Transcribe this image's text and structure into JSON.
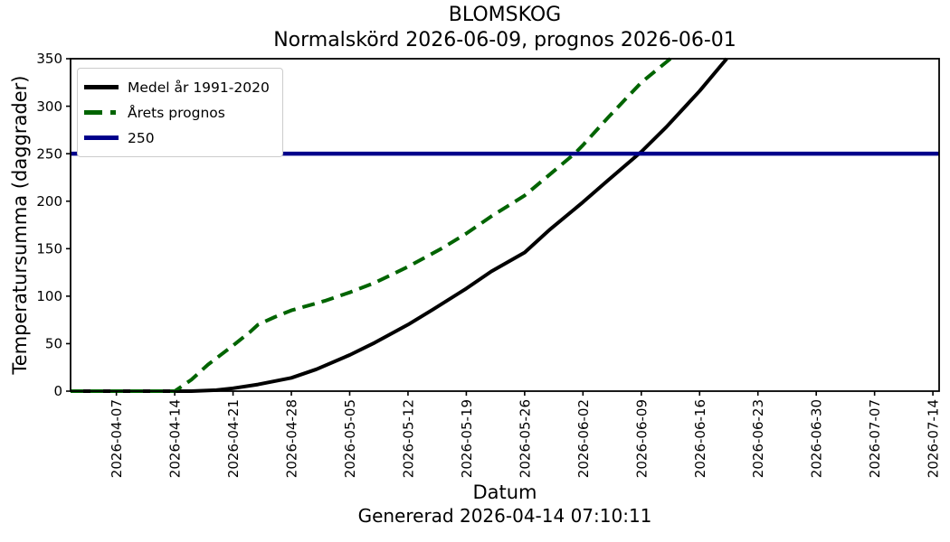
{
  "chart_data": {
    "type": "line",
    "title": "BLOMSKOG",
    "subtitle": "Normalskörd 2026-06-09, prognos 2026-06-01",
    "xlabel": "Datum",
    "ylabel": "Temperatursumma (daggrader)",
    "footer": "Genererad 2026-04-14 07:10:11",
    "grid": false,
    "legend_position": "upper-left",
    "ylim": [
      0,
      350
    ],
    "yticks": [
      0,
      50,
      100,
      150,
      200,
      250,
      300,
      350
    ],
    "x_domain": [
      "2026-04-01T12:00:00Z",
      "2026-07-14T18:00:00Z"
    ],
    "xticks": [
      "2026-04-07",
      "2026-04-14",
      "2026-04-21",
      "2026-04-28",
      "2026-05-05",
      "2026-05-12",
      "2026-05-19",
      "2026-05-26",
      "2026-06-02",
      "2026-06-09",
      "2026-06-16",
      "2026-06-23",
      "2026-06-30",
      "2026-07-07",
      "2026-07-14"
    ],
    "threshold_value": 250,
    "series": [
      {
        "name": "medel",
        "label": "Medel år 1991-2020",
        "color": "#000000",
        "style": "solid",
        "width": 4,
        "points": [
          [
            "2026-04-01T12:00:00Z",
            0
          ],
          [
            "2026-04-16",
            0
          ],
          [
            "2026-04-19",
            1
          ],
          [
            "2026-04-21",
            3
          ],
          [
            "2026-04-24",
            7
          ],
          [
            "2026-04-28",
            14
          ],
          [
            "2026-05-01",
            23
          ],
          [
            "2026-05-05",
            38
          ],
          [
            "2026-05-08",
            51
          ],
          [
            "2026-05-12",
            70
          ],
          [
            "2026-05-15",
            86
          ],
          [
            "2026-05-19",
            108
          ],
          [
            "2026-05-22",
            126
          ],
          [
            "2026-05-26",
            146
          ],
          [
            "2026-05-29",
            170
          ],
          [
            "2026-06-02",
            199
          ],
          [
            "2026-06-05",
            222
          ],
          [
            "2026-06-09",
            252
          ],
          [
            "2026-06-12",
            278
          ],
          [
            "2026-06-16",
            316
          ],
          [
            "2026-06-19T06:00:00Z",
            350
          ]
        ]
      },
      {
        "name": "prognos",
        "label": "Årets prognos",
        "color": "#006400",
        "style": "dashed",
        "width": 4,
        "points": [
          [
            "2026-04-01T12:00:00Z",
            0
          ],
          [
            "2026-04-14",
            0
          ],
          [
            "2026-04-16",
            12
          ],
          [
            "2026-04-18",
            28
          ],
          [
            "2026-04-21",
            48
          ],
          [
            "2026-04-23",
            62
          ],
          [
            "2026-04-24",
            70
          ],
          [
            "2026-04-26",
            78
          ],
          [
            "2026-04-28",
            85
          ],
          [
            "2026-05-02",
            95
          ],
          [
            "2026-05-05",
            104
          ],
          [
            "2026-05-08",
            114
          ],
          [
            "2026-05-12",
            131
          ],
          [
            "2026-05-16",
            150
          ],
          [
            "2026-05-19",
            166
          ],
          [
            "2026-05-22",
            184
          ],
          [
            "2026-05-26",
            206
          ],
          [
            "2026-05-29",
            228
          ],
          [
            "2026-06-01",
            250
          ],
          [
            "2026-06-02",
            259
          ],
          [
            "2026-06-05",
            288
          ],
          [
            "2026-06-09",
            325
          ],
          [
            "2026-06-12T12:00:00Z",
            350
          ]
        ]
      },
      {
        "name": "threshold-250",
        "label": "250",
        "color": "#00008b",
        "style": "solid",
        "width": 4.5,
        "points": [
          [
            "2026-04-01T12:00:00Z",
            250
          ],
          [
            "2026-07-14T18:00:00Z",
            250
          ]
        ]
      }
    ]
  }
}
